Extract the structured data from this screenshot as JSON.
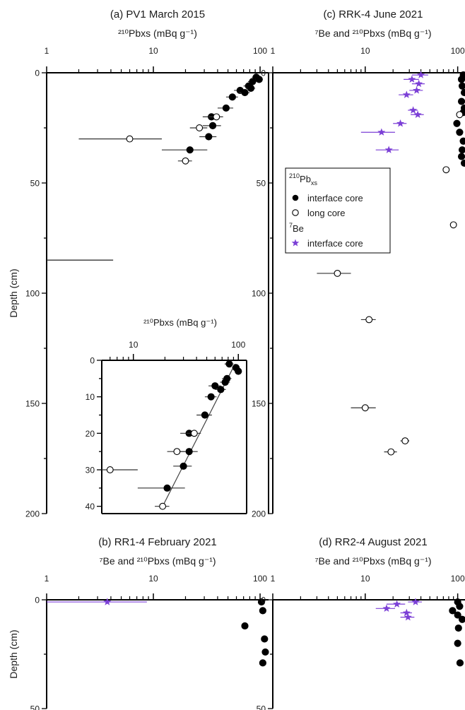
{
  "figure": {
    "ylabel_depth": "Depth (cm)",
    "legend": {
      "group1": {
        "base": "210",
        "main": "Pb",
        "sub": "xs"
      },
      "group1_items": [
        "interface core",
        "long core"
      ],
      "group2": {
        "base": "7",
        "main": "Be"
      },
      "group2_items": [
        "interface core"
      ]
    }
  },
  "chart_data": [
    {
      "id": "a",
      "type": "scatter",
      "title": "(a) PV1 March 2015",
      "xlabel": "²¹⁰Pbxs (mBq g⁻¹)",
      "ylabel": "Depth (cm)",
      "xscale": "log",
      "xlim": [
        1,
        120
      ],
      "ylim": [
        200,
        0
      ],
      "xticks": [
        "1",
        "10",
        "100"
      ],
      "yticks": [
        "0",
        "50",
        "100",
        "150",
        "200"
      ],
      "series": [
        {
          "name": "interface core",
          "marker": "filled-circle",
          "color": "#000000",
          "points": [
            [
              92,
              2
            ],
            [
              98,
              3
            ],
            [
              85,
              4
            ],
            [
              78,
              6
            ],
            [
              82,
              7
            ],
            [
              65,
              8
            ],
            [
              72,
              9
            ],
            [
              55,
              11
            ],
            [
              48,
              16
            ],
            [
              35,
              20
            ],
            [
              36,
              24
            ],
            [
              33,
              29
            ],
            [
              22,
              35
            ]
          ],
          "xerr_lo": [
            8,
            8,
            8,
            8,
            8,
            8,
            8,
            7,
            8,
            6,
            7,
            6,
            10
          ],
          "xerr_hi": [
            8,
            8,
            8,
            8,
            8,
            8,
            8,
            7,
            8,
            6,
            7,
            6,
            10
          ]
        },
        {
          "name": "long core",
          "marker": "open-circle",
          "color": "#000000",
          "points": [
            [
              39,
              20
            ],
            [
              27,
              25
            ],
            [
              6,
              30
            ],
            [
              20,
              40
            ]
          ],
          "xerr_lo": [
            6,
            5,
            4,
            3
          ],
          "xerr_hi": [
            6,
            5,
            6,
            3
          ]
        }
      ],
      "extra_lines": [
        {
          "y": 85,
          "x_from": 1,
          "x_to": 4.2
        }
      ]
    },
    {
      "id": "a-inset",
      "type": "scatter",
      "xlabel": "²¹⁰Pbxs (mBq g⁻¹)",
      "xscale": "log",
      "xlim": [
        5,
        120
      ],
      "ylim": [
        42,
        0
      ],
      "xticks": [
        "10",
        "100"
      ],
      "yticks": [
        "0",
        "10",
        "20",
        "30",
        "40"
      ],
      "series": [
        {
          "name": "interface core",
          "marker": "filled-circle",
          "color": "#000000",
          "points": [
            [
              82,
              1
            ],
            [
              95,
              2
            ],
            [
              100,
              3
            ],
            [
              78,
              5
            ],
            [
              75,
              6
            ],
            [
              60,
              7
            ],
            [
              68,
              8
            ],
            [
              55,
              10
            ],
            [
              48,
              15
            ],
            [
              34,
              20
            ],
            [
              34,
              25
            ],
            [
              30,
              29
            ],
            [
              21,
              35
            ]
          ],
          "xerr_lo": [
            8,
            8,
            8,
            8,
            8,
            8,
            8,
            7,
            8,
            6,
            7,
            6,
            10
          ],
          "xerr_hi": [
            8,
            8,
            8,
            8,
            8,
            8,
            8,
            7,
            8,
            6,
            7,
            6,
            10
          ]
        },
        {
          "name": "long core",
          "marker": "open-circle",
          "color": "#000000",
          "points": [
            [
              38,
              20
            ],
            [
              26,
              25
            ],
            [
              6,
              30
            ],
            [
              19,
              40
            ]
          ],
          "xerr_lo": [
            6,
            5,
            3,
            3
          ],
          "xerr_hi": [
            6,
            5,
            5,
            3
          ]
        }
      ],
      "fit_line": [
        [
          93,
          1
        ],
        [
          19,
          40
        ]
      ]
    },
    {
      "id": "b",
      "type": "scatter",
      "title": "(b) RR1-4 February 2021",
      "xlabel": "⁷Be and ²¹⁰Pbxs (mBq g⁻¹)",
      "ylabel": "Depth (cm)",
      "xscale": "log",
      "xlim": [
        1,
        120
      ],
      "ylim": [
        50,
        0
      ],
      "xticks": [
        "1",
        "10",
        "100"
      ],
      "yticks": [
        "0",
        "50"
      ],
      "series": [
        {
          "name": "²¹⁰Pbxs interface core",
          "marker": "filled-circle",
          "color": "#000000",
          "points": [
            [
              103,
              1
            ],
            [
              106,
              5
            ],
            [
              72,
              12
            ],
            [
              110,
              18
            ],
            [
              112,
              24
            ],
            [
              106,
              29
            ]
          ],
          "xerr_lo": [
            0,
            0,
            0,
            0,
            0,
            0
          ],
          "xerr_hi": [
            0,
            0,
            0,
            0,
            0,
            0
          ]
        },
        {
          "name": "⁷Be interface core",
          "marker": "star",
          "color": "#7b3fd6",
          "points": [
            [
              3.7,
              1
            ]
          ],
          "xerr_lo": [
            2.7
          ],
          "xerr_hi": [
            5
          ]
        }
      ]
    },
    {
      "id": "c",
      "type": "scatter",
      "title": "(c) RRK-4 June 2021",
      "xlabel": "⁷Be and ²¹⁰Pbxs (mBq g⁻¹)",
      "xscale": "log",
      "xlim": [
        1,
        120
      ],
      "ylim": [
        200,
        0
      ],
      "xticks": [
        "1",
        "10",
        "100"
      ],
      "yticks": [
        "0",
        "50",
        "100",
        "150",
        "200"
      ],
      "series": [
        {
          "name": "²¹⁰Pbxs interface core",
          "marker": "filled-circle",
          "color": "#000000",
          "points": [
            [
              115,
              1
            ],
            [
              110,
              3
            ],
            [
              112,
              6
            ],
            [
              118,
              9
            ],
            [
              110,
              13
            ],
            [
              118,
              16
            ],
            [
              115,
              18
            ],
            [
              98,
              23
            ],
            [
              105,
              27
            ],
            [
              115,
              31
            ],
            [
              112,
              35
            ],
            [
              110,
              38
            ],
            [
              118,
              41
            ]
          ],
          "xerr_lo": [
            0,
            0,
            0,
            0,
            0,
            0,
            0,
            0,
            0,
            0,
            0,
            0,
            0
          ],
          "xerr_hi": [
            0,
            0,
            0,
            0,
            0,
            0,
            0,
            0,
            0,
            0,
            0,
            0,
            0
          ]
        },
        {
          "name": "²¹⁰Pbxs long core",
          "marker": "open-circle",
          "color": "#000000",
          "points": [
            [
              105,
              19
            ],
            [
              75,
              44
            ],
            [
              90,
              69
            ],
            [
              5,
              91
            ],
            [
              11,
              112
            ],
            [
              10,
              152
            ],
            [
              27,
              167
            ],
            [
              19,
              172
            ]
          ],
          "xerr_lo": [
            6,
            5,
            6,
            2,
            2,
            3,
            3,
            3
          ],
          "xerr_hi": [
            6,
            5,
            6,
            2,
            2,
            3,
            3,
            3
          ]
        },
        {
          "name": "⁷Be interface core",
          "marker": "star",
          "color": "#7b3fd6",
          "points": [
            [
              40,
              1
            ],
            [
              32,
              3
            ],
            [
              38,
              5
            ],
            [
              36,
              8
            ],
            [
              28,
              10
            ],
            [
              33,
              17
            ],
            [
              37,
              19
            ],
            [
              24,
              23
            ],
            [
              15,
              27
            ],
            [
              18,
              35
            ]
          ],
          "xerr_lo": [
            8,
            6,
            6,
            6,
            5,
            4,
            6,
            4,
            6,
            5
          ],
          "xerr_hi": [
            8,
            6,
            6,
            6,
            5,
            4,
            6,
            4,
            6,
            5
          ]
        }
      ]
    },
    {
      "id": "d",
      "type": "scatter",
      "title": "(d) RR2-4 August 2021",
      "xlabel": "⁷Be and ²¹⁰Pbxs (mBq g⁻¹)",
      "xscale": "log",
      "xlim": [
        1,
        120
      ],
      "ylim": [
        50,
        0
      ],
      "xticks": [
        "1",
        "10",
        "100"
      ],
      "yticks": [
        "0",
        "50"
      ],
      "series": [
        {
          "name": "²¹⁰Pbxs interface core",
          "marker": "filled-circle",
          "color": "#000000",
          "points": [
            [
              100,
              1
            ],
            [
              105,
              3
            ],
            [
              88,
              5
            ],
            [
              100,
              7
            ],
            [
              112,
              9
            ],
            [
              102,
              13
            ],
            [
              100,
              20
            ],
            [
              106,
              29
            ]
          ],
          "xerr_lo": [
            0,
            0,
            0,
            0,
            0,
            0,
            0,
            0
          ],
          "xerr_hi": [
            0,
            0,
            0,
            0,
            0,
            0,
            0,
            0
          ]
        },
        {
          "name": "⁷Be interface core",
          "marker": "star",
          "color": "#7b3fd6",
          "points": [
            [
              35,
              1
            ],
            [
              22,
              2
            ],
            [
              17,
              4
            ],
            [
              28,
              6
            ],
            [
              29,
              8
            ]
          ],
          "xerr_lo": [
            6,
            5,
            4,
            4,
            5
          ],
          "xerr_hi": [
            6,
            5,
            4,
            4,
            5
          ]
        }
      ]
    }
  ]
}
